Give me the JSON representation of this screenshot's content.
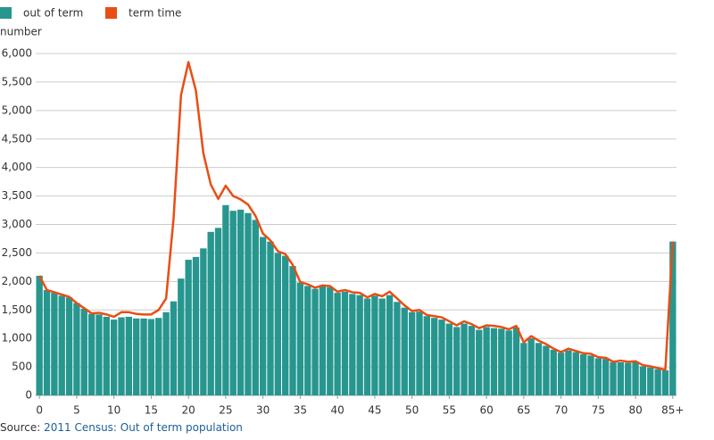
{
  "chart_data": {
    "type": "bar_line",
    "y_label": "number",
    "source": {
      "prefix": "Source:",
      "link": "2011 Census: Out of term population"
    },
    "categories": [
      "0",
      null,
      null,
      null,
      null,
      "5",
      null,
      null,
      null,
      null,
      "10",
      null,
      null,
      null,
      null,
      "15",
      null,
      null,
      null,
      null,
      "20",
      null,
      null,
      null,
      null,
      "25",
      null,
      null,
      null,
      null,
      "30",
      null,
      null,
      null,
      null,
      "35",
      null,
      null,
      null,
      null,
      "40",
      null,
      null,
      null,
      null,
      "45",
      null,
      null,
      null,
      null,
      "50",
      null,
      null,
      null,
      null,
      "55",
      null,
      null,
      null,
      null,
      "60",
      null,
      null,
      null,
      null,
      "65",
      null,
      null,
      null,
      null,
      "70",
      null,
      null,
      null,
      null,
      "75",
      null,
      null,
      null,
      null,
      "80",
      null,
      null,
      null,
      null,
      "85+"
    ],
    "series": [
      {
        "name": "out of term",
        "color": "#27968f",
        "kind": "bar",
        "values": [
          2100,
          1850,
          1800,
          1750,
          1720,
          1620,
          1520,
          1430,
          1420,
          1380,
          1330,
          1370,
          1380,
          1350,
          1350,
          1340,
          1360,
          1460,
          1650,
          2050,
          2380,
          2430,
          2580,
          2870,
          2940,
          3340,
          3240,
          3260,
          3200,
          3080,
          2780,
          2700,
          2500,
          2450,
          2270,
          1980,
          1920,
          1870,
          1920,
          1900,
          1800,
          1820,
          1780,
          1760,
          1700,
          1750,
          1700,
          1760,
          1640,
          1540,
          1460,
          1470,
          1390,
          1360,
          1330,
          1260,
          1200,
          1260,
          1220,
          1150,
          1200,
          1180,
          1170,
          1140,
          1190,
          920,
          1000,
          920,
          870,
          800,
          750,
          790,
          760,
          720,
          700,
          650,
          640,
          580,
          580,
          570,
          580,
          510,
          490,
          460,
          440,
          2700
        ]
      },
      {
        "name": "term time",
        "color": "#e84e14",
        "kind": "line",
        "values": [
          2100,
          1850,
          1810,
          1770,
          1730,
          1620,
          1530,
          1440,
          1450,
          1420,
          1380,
          1460,
          1460,
          1430,
          1420,
          1420,
          1500,
          1700,
          3100,
          5270,
          5850,
          5350,
          4250,
          3700,
          3450,
          3680,
          3500,
          3440,
          3350,
          3150,
          2840,
          2720,
          2530,
          2480,
          2290,
          1990,
          1950,
          1890,
          1930,
          1920,
          1820,
          1850,
          1810,
          1800,
          1720,
          1780,
          1740,
          1820,
          1700,
          1580,
          1480,
          1500,
          1410,
          1390,
          1370,
          1300,
          1230,
          1300,
          1250,
          1180,
          1230,
          1220,
          1200,
          1160,
          1220,
          930,
          1040,
          960,
          900,
          820,
          760,
          820,
          780,
          740,
          730,
          670,
          660,
          590,
          610,
          590,
          600,
          530,
          510,
          480,
          450,
          2700
        ]
      }
    ],
    "ylim": [
      0,
      6000
    ],
    "yticks": [
      0,
      {
        "value": 500,
        "label": "500"
      },
      {
        "value": 1000,
        "label": "1,000"
      },
      {
        "value": 1500,
        "label": "1,500"
      },
      {
        "value": 2000,
        "label": "2,000"
      },
      {
        "value": 2500,
        "label": "2,500"
      },
      {
        "value": 3000,
        "label": "3,000"
      },
      {
        "value": 3500,
        "label": "3,500"
      },
      {
        "value": 4000,
        "label": "4,000"
      },
      {
        "value": 4500,
        "label": "4,500"
      },
      {
        "value": 5000,
        "label": "5,000"
      },
      {
        "value": 5500,
        "label": "5,500"
      },
      {
        "value": 6000,
        "label": "6,000"
      }
    ],
    "grid": true
  }
}
